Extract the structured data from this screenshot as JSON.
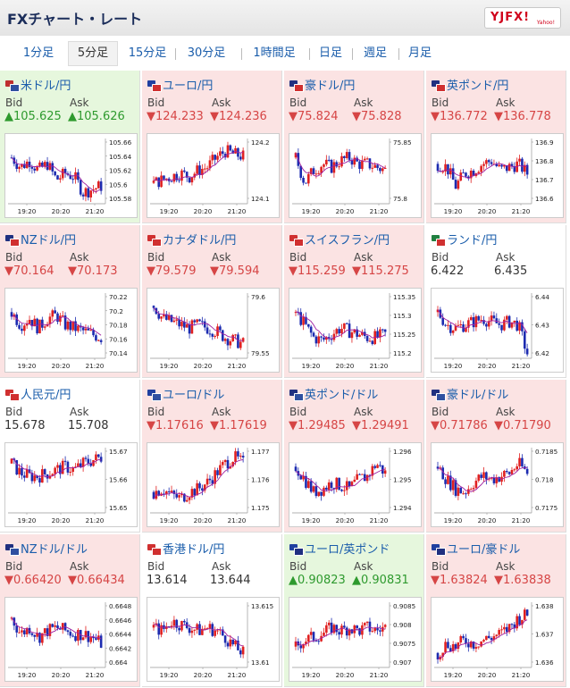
{
  "header": {
    "title": "FXチャート・レート",
    "logo_text": "YJFX!",
    "logo_sub": "Yahoo!"
  },
  "tabs": [
    "1分足",
    "5分足",
    "15分足",
    "30分足",
    "1時間足",
    "日足",
    "週足",
    "月足"
  ],
  "active_tab": 1,
  "colors": {
    "up": "#2e9a2e",
    "down": "#d64545",
    "candle_up": "#e02020",
    "candle_down": "#1c2bb0",
    "ma": "#a020a0",
    "link": "#1a5dab"
  },
  "labels": {
    "bid": "Bid",
    "ask": "Ask"
  },
  "x_ticks": [
    "19:20",
    "20:20",
    "21:20"
  ],
  "rates": [
    {
      "pair": "米ドル/円",
      "bid": "▲105.625",
      "ask": "▲105.626",
      "dir": "up",
      "flags": [
        "#bf2f2f",
        "#3050a0"
      ],
      "y_ticks": [
        "105.66",
        "105.64",
        "105.62",
        "105.6",
        "105.58"
      ],
      "trend": [
        0.7,
        0.55,
        0.65,
        0.5,
        0.6,
        0.35,
        0.45,
        0.4,
        0.15,
        0.2,
        0.25
      ]
    },
    {
      "pair": "ユーロ/円",
      "bid": "▼124.233",
      "ask": "▼124.236",
      "dir": "down",
      "flags": [
        "#2040a0",
        "#d03030"
      ],
      "y_ticks": [
        "124.2",
        "124.1"
      ],
      "trend": [
        0.3,
        0.35,
        0.4,
        0.45,
        0.4,
        0.5,
        0.55,
        0.7,
        0.8,
        0.75,
        0.72
      ]
    },
    {
      "pair": "豪ドル/円",
      "bid": "▼75.824",
      "ask": "▼75.828",
      "dir": "down",
      "flags": [
        "#203080",
        "#d03030"
      ],
      "y_ticks": [
        "75.85",
        "75.8"
      ],
      "trend": [
        0.7,
        0.3,
        0.5,
        0.6,
        0.55,
        0.65,
        0.7,
        0.6,
        0.6,
        0.55,
        0.5
      ]
    },
    {
      "pair": "英ポンド/円",
      "bid": "▼136.772",
      "ask": "▼136.778",
      "dir": "down",
      "flags": [
        "#203080",
        "#d03030"
      ],
      "y_ticks": [
        "136.9",
        "136.8",
        "136.7",
        "136.6"
      ],
      "trend": [
        0.6,
        0.55,
        0.25,
        0.45,
        0.5,
        0.6,
        0.65,
        0.5,
        0.55,
        0.6,
        0.45
      ]
    },
    {
      "pair": "NZドル/円",
      "bid": "▼70.164",
      "ask": "▼70.173",
      "dir": "down",
      "flags": [
        "#203080",
        "#d03030"
      ],
      "y_ticks": [
        "70.22",
        "70.2",
        "70.18",
        "70.16",
        "70.14"
      ],
      "trend": [
        0.7,
        0.5,
        0.6,
        0.45,
        0.6,
        0.65,
        0.5,
        0.45,
        0.4,
        0.35,
        0.3
      ]
    },
    {
      "pair": "カナダドル/円",
      "bid": "▼79.579",
      "ask": "▼79.594",
      "dir": "down",
      "flags": [
        "#d03030",
        "#d03030"
      ],
      "y_ticks": [
        "79.6",
        "79.55"
      ],
      "trend": [
        0.8,
        0.6,
        0.55,
        0.5,
        0.45,
        0.5,
        0.45,
        0.4,
        0.3,
        0.25,
        0.2
      ]
    },
    {
      "pair": "スイスフラン/円",
      "bid": "▼115.259",
      "ask": "▼115.275",
      "dir": "down",
      "flags": [
        "#d03030",
        "#d03030"
      ],
      "y_ticks": [
        "115.35",
        "115.3",
        "115.25",
        "115.2"
      ],
      "trend": [
        0.7,
        0.5,
        0.3,
        0.25,
        0.35,
        0.45,
        0.4,
        0.35,
        0.3,
        0.3,
        0.35
      ]
    },
    {
      "pair": "ランド/円",
      "bid": "6.422",
      "ask": "6.435",
      "dir": "flat",
      "flags": [
        "#208040",
        "#d03030"
      ],
      "y_ticks": [
        "6.44",
        "6.43",
        "6.42"
      ],
      "trend": [
        0.7,
        0.5,
        0.45,
        0.5,
        0.55,
        0.6,
        0.55,
        0.5,
        0.55,
        0.5,
        0.05
      ]
    },
    {
      "pair": "人民元/円",
      "bid": "15.678",
      "ask": "15.708",
      "dir": "flat",
      "flags": [
        "#d03030",
        "#d03030"
      ],
      "y_ticks": [
        "15.67",
        "15.66",
        "15.65"
      ],
      "trend": [
        0.75,
        0.6,
        0.55,
        0.55,
        0.6,
        0.65,
        0.7,
        0.65,
        0.75,
        0.8,
        0.85
      ]
    },
    {
      "pair": "ユーロ/ドル",
      "bid": "▼1.17616",
      "ask": "▼1.17619",
      "dir": "down",
      "flags": [
        "#2040a0",
        "#3050a0"
      ],
      "y_ticks": [
        "1.177",
        "1.176",
        "1.175"
      ],
      "trend": [
        0.3,
        0.35,
        0.25,
        0.2,
        0.3,
        0.35,
        0.45,
        0.6,
        0.75,
        0.85,
        0.75
      ]
    },
    {
      "pair": "英ポンド/ドル",
      "bid": "▼1.29485",
      "ask": "▼1.29491",
      "dir": "down",
      "flags": [
        "#203080",
        "#3050a0"
      ],
      "y_ticks": [
        "1.296",
        "1.295",
        "1.294"
      ],
      "trend": [
        0.7,
        0.5,
        0.3,
        0.35,
        0.45,
        0.4,
        0.35,
        0.5,
        0.55,
        0.75,
        0.6
      ]
    },
    {
      "pair": "豪ドル/ドル",
      "bid": "▼0.71786",
      "ask": "▼0.71790",
      "dir": "down",
      "flags": [
        "#203080",
        "#3050a0"
      ],
      "y_ticks": [
        "0.7185",
        "0.718",
        "0.7175"
      ],
      "trend": [
        0.7,
        0.5,
        0.35,
        0.3,
        0.45,
        0.55,
        0.5,
        0.55,
        0.6,
        0.75,
        0.6
      ]
    },
    {
      "pair": "NZドル/ドル",
      "bid": "▼0.66420",
      "ask": "▼0.66434",
      "dir": "down",
      "flags": [
        "#203080",
        "#3050a0"
      ],
      "y_ticks": [
        "0.6648",
        "0.6646",
        "0.6644",
        "0.6642",
        "0.664"
      ],
      "trend": [
        0.75,
        0.5,
        0.6,
        0.45,
        0.55,
        0.6,
        0.55,
        0.5,
        0.5,
        0.45,
        0.35
      ]
    },
    {
      "pair": "香港ドル/円",
      "bid": "13.614",
      "ask": "13.644",
      "dir": "flat",
      "flags": [
        "#d03030",
        "#d03030"
      ],
      "y_ticks": [
        "13.615",
        "13.61"
      ],
      "trend": [
        0.6,
        0.55,
        0.7,
        0.65,
        0.6,
        0.55,
        0.6,
        0.55,
        0.45,
        0.3,
        0.2
      ]
    },
    {
      "pair": "ユーロ/英ポンド",
      "bid": "▲0.90823",
      "ask": "▲0.90831",
      "dir": "up",
      "flags": [
        "#2040a0",
        "#203080"
      ],
      "y_ticks": [
        "0.9085",
        "0.908",
        "0.9075",
        "0.907"
      ],
      "trend": [
        0.3,
        0.4,
        0.45,
        0.5,
        0.6,
        0.55,
        0.6,
        0.55,
        0.6,
        0.55,
        0.6
      ]
    },
    {
      "pair": "ユーロ/豪ドル",
      "bid": "▼1.63824",
      "ask": "▼1.63838",
      "dir": "down",
      "flags": [
        "#2040a0",
        "#203080"
      ],
      "y_ticks": [
        "1.638",
        "1.637",
        "1.636"
      ],
      "trend": [
        0.2,
        0.35,
        0.3,
        0.4,
        0.35,
        0.4,
        0.45,
        0.5,
        0.6,
        0.75,
        0.8
      ]
    }
  ]
}
